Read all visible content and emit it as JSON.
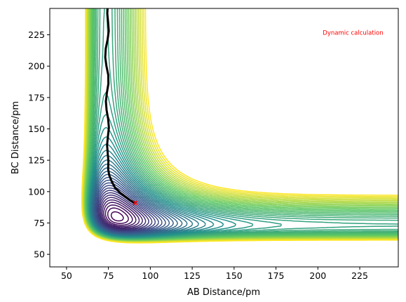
{
  "chart_data": {
    "type": "contour",
    "title": "",
    "xlabel": "AB Distance/pm",
    "ylabel": "BC Distance/pm",
    "xlim": [
      40,
      248
    ],
    "ylim": [
      40,
      246
    ],
    "xticks": [
      50,
      75,
      100,
      125,
      150,
      175,
      200,
      225
    ],
    "yticks": [
      50,
      75,
      100,
      125,
      150,
      175,
      200,
      225
    ],
    "grid": false,
    "colormap": [
      "#440154",
      "#3b528b",
      "#21918c",
      "#5ec962",
      "#fde725"
    ],
    "annotation": {
      "text": "Dynamic calculation",
      "x": 221,
      "y": 225,
      "color": "#ff0000"
    },
    "series": [
      {
        "type": "trajectory",
        "color": "#000000",
        "points": [
          [
            91,
            91
          ],
          [
            88,
            93
          ],
          [
            85,
            96
          ],
          [
            82,
            99
          ],
          [
            79,
            103
          ],
          [
            77,
            108
          ],
          [
            75.5,
            113
          ],
          [
            74.8,
            118
          ],
          [
            75,
            124
          ],
          [
            74.6,
            130
          ],
          [
            74.2,
            137
          ],
          [
            74.7,
            144
          ],
          [
            75.3,
            151
          ],
          [
            74.8,
            158
          ],
          [
            73.9,
            165
          ],
          [
            73.5,
            172
          ],
          [
            74.1,
            179
          ],
          [
            75,
            186
          ],
          [
            74.9,
            193
          ],
          [
            73.8,
            200
          ],
          [
            73.1,
            207
          ],
          [
            73.4,
            214
          ],
          [
            74.5,
            221
          ],
          [
            75.2,
            228
          ],
          [
            74.8,
            235
          ],
          [
            74.3,
            242
          ],
          [
            74.5,
            246
          ]
        ]
      },
      {
        "type": "marker",
        "color": "#ff0000",
        "points": [
          [
            91,
            91
          ]
        ]
      }
    ]
  }
}
